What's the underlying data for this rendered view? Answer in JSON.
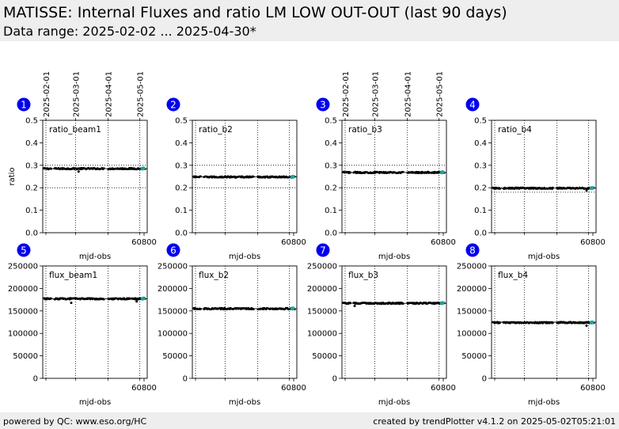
{
  "header": {
    "title": "MATISSE: Internal Fluxes and ratio LM LOW OUT-OUT (last 90 days)",
    "subtitle": "Data range: 2025-02-02 ... 2025-04-30*"
  },
  "footer": {
    "left": "powered by QC: www.eso.org/HC",
    "right": "created by trendPlotter v4.1.2 on 2025-05-02T05:21:01"
  },
  "colors": {
    "points": "#000000",
    "latest": "#1aa39a",
    "badge": "#0000ee",
    "background": "#ffffff"
  },
  "top_dates": [
    "2025-02-01",
    "2025-03-01",
    "2025-04-01",
    "2025-05-01"
  ],
  "chart_data": [
    {
      "type": "scatter",
      "number": "1",
      "label": "ratio_beam1",
      "xlabel": "mjd-obs",
      "ylabel": "ratio",
      "xlim": [
        60704,
        60803
      ],
      "ylim": [
        0,
        0.5
      ],
      "xticks": [
        60800
      ],
      "yticks": [
        0,
        0.1,
        0.2,
        0.3,
        0.4,
        0.5
      ],
      "ytick_labels": [
        "0.0",
        "0.1",
        "0.2",
        "0.3",
        "0.4",
        "0.5"
      ],
      "hlines": [
        0.3,
        0.2
      ],
      "ref_line": 0.285,
      "value": 0.285,
      "outliers": [
        [
          60738,
          0.272
        ]
      ]
    },
    {
      "type": "scatter",
      "number": "2",
      "label": "ratio_b2",
      "xlabel": "mjd-obs",
      "ylabel": "",
      "xlim": [
        60704,
        60803
      ],
      "ylim": [
        0,
        0.5
      ],
      "xticks": [
        60800
      ],
      "yticks": [
        0,
        0.1,
        0.2,
        0.3,
        0.4,
        0.5
      ],
      "ytick_labels": [
        "0.0",
        "0.1",
        "0.2",
        "0.3",
        "0.4",
        "0.5"
      ],
      "hlines": [
        0.3,
        0.2
      ],
      "ref_line": 0.248,
      "value": 0.248,
      "outliers": []
    },
    {
      "type": "scatter",
      "number": "3",
      "label": "ratio_b3",
      "xlabel": "mjd-obs",
      "ylabel": "",
      "xlim": [
        60704,
        60803
      ],
      "ylim": [
        0,
        0.5
      ],
      "xticks": [
        60800
      ],
      "yticks": [
        0,
        0.1,
        0.2,
        0.3,
        0.4,
        0.5
      ],
      "ytick_labels": [
        "0.0",
        "0.1",
        "0.2",
        "0.3",
        "0.4",
        "0.5"
      ],
      "hlines": [
        0.3,
        0.2
      ],
      "ref_line": 0.268,
      "value": 0.268,
      "outliers": []
    },
    {
      "type": "scatter",
      "number": "4",
      "label": "ratio_b4",
      "xlabel": "mjd-obs",
      "ylabel": "",
      "xlim": [
        60704,
        60803
      ],
      "ylim": [
        0,
        0.5
      ],
      "xticks": [
        60800
      ],
      "yticks": [
        0,
        0.1,
        0.2,
        0.3,
        0.4,
        0.5
      ],
      "ytick_labels": [
        "0.0",
        "0.1",
        "0.2",
        "0.3",
        "0.4",
        "0.5"
      ],
      "hlines": [
        0.2,
        0.18
      ],
      "ref_line": 0.198,
      "value": 0.198,
      "outliers": [
        [
          60794,
          0.188
        ]
      ]
    },
    {
      "type": "scatter",
      "number": "5",
      "label": "flux_beam1",
      "xlabel": "mjd-obs",
      "ylabel": "",
      "xlim": [
        60704,
        60803
      ],
      "ylim": [
        0,
        250000
      ],
      "xticks": [
        60800
      ],
      "yticks": [
        0,
        50000,
        100000,
        150000,
        200000,
        250000
      ],
      "ytick_labels": [
        "0",
        "50000",
        "100000",
        "150000",
        "200000",
        "250000"
      ],
      "hlines": [],
      "ref_line": 177000,
      "value": 177000,
      "outliers": [
        [
          60731,
          168000
        ],
        [
          60793,
          171000
        ]
      ]
    },
    {
      "type": "scatter",
      "number": "6",
      "label": "flux_b2",
      "xlabel": "mjd-obs",
      "ylabel": "",
      "xlim": [
        60704,
        60803
      ],
      "ylim": [
        0,
        250000
      ],
      "xticks": [
        60800
      ],
      "yticks": [
        0,
        50000,
        100000,
        150000,
        200000,
        250000
      ],
      "ytick_labels": [
        "0",
        "50000",
        "100000",
        "150000",
        "200000",
        "250000"
      ],
      "hlines": [],
      "ref_line": 155000,
      "value": 155000,
      "outliers": []
    },
    {
      "type": "scatter",
      "number": "7",
      "label": "flux_b3",
      "xlabel": "mjd-obs",
      "ylabel": "",
      "xlim": [
        60704,
        60803
      ],
      "ylim": [
        0,
        250000
      ],
      "xticks": [
        60800
      ],
      "yticks": [
        0,
        50000,
        100000,
        150000,
        200000,
        250000
      ],
      "ytick_labels": [
        "0",
        "50000",
        "100000",
        "150000",
        "200000",
        "250000"
      ],
      "hlines": [],
      "ref_line": 167000,
      "value": 167000,
      "outliers": [
        [
          60716,
          161000
        ]
      ]
    },
    {
      "type": "scatter",
      "number": "8",
      "label": "flux_b4",
      "xlabel": "mjd-obs",
      "ylabel": "",
      "xlim": [
        60704,
        60803
      ],
      "ylim": [
        0,
        250000
      ],
      "xticks": [
        60800
      ],
      "yticks": [
        0,
        50000,
        100000,
        150000,
        200000,
        250000
      ],
      "ytick_labels": [
        "0",
        "50000",
        "100000",
        "150000",
        "200000",
        "250000"
      ],
      "hlines": [],
      "ref_line": 125000,
      "value": 124000,
      "outliers": [
        [
          60794,
          117000
        ]
      ]
    }
  ]
}
